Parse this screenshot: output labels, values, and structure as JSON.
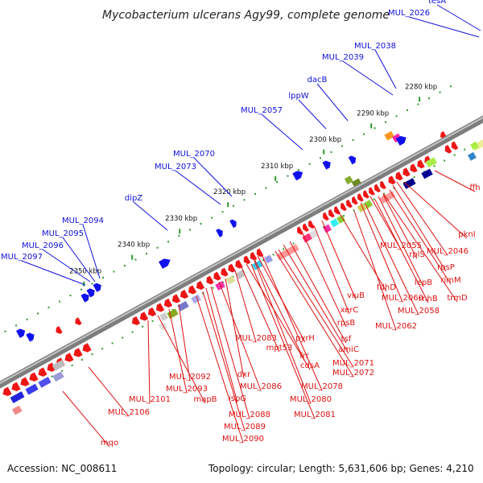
{
  "title": "Mycobacterium ulcerans Agy99, complete genome",
  "footer": {
    "accession": "Accession: NC_008611",
    "summary": "Topology: circular; Length: 5,631,606 bp; Genes: 4,210"
  },
  "colors": {
    "plus_labels": "#1010dd",
    "minus_labels": "#dd1111",
    "ruler_dots": "#2e9a2e",
    "backbone": "#7d7d7d"
  },
  "kbp_ticks": [
    "2280 kbp",
    "2290 kbp",
    "2300 kbp",
    "2310 kbp",
    "2320 kbp",
    "2330 kbp",
    "2340 kbp",
    "2350 kbp"
  ],
  "plus_strand_labels": [
    "tesA",
    "MUL_2026",
    "MUL_2038",
    "MUL_2039",
    "dacB",
    "lppW",
    "MUL_2057",
    "MUL_2070",
    "MUL_2073",
    "dipZ",
    "MUL_2094",
    "MUL_2095",
    "MUL_2096",
    "MUL_2097"
  ],
  "minus_strand_labels": [
    "ffh",
    "pknI",
    "MUL_2046",
    "rpsP",
    "rimM",
    "trmD",
    "rplS",
    "MUL_2055",
    "lepB",
    "rnhB",
    "MUL_2060",
    "MUL_2058",
    "fdhD",
    "viuB",
    "xerC",
    "MUL_2062",
    "rpsB",
    "tsf",
    "amiC",
    "pyrH",
    "MUL_2071",
    "MUL_2072",
    "frr",
    "cdsA",
    "MUL_2083",
    "mpt53",
    "MUL_2078",
    "dxr",
    "MUL_2080",
    "MUL_2086",
    "MUL_2081",
    "ispG",
    "MUL_2088",
    "MUL_2089",
    "MUL_2090",
    "MUL_2092",
    "MUL_2093",
    "mapB",
    "MUL_2101",
    "MUL_2106",
    "mqo"
  ]
}
